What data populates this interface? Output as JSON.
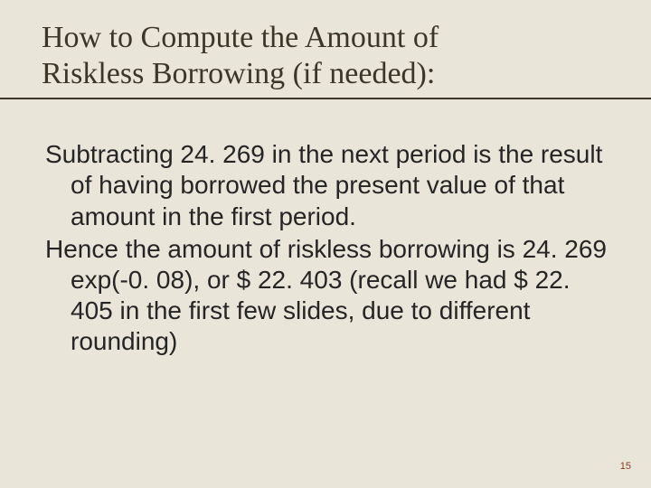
{
  "colors": {
    "background": "#eae5d9",
    "title_text": "#3d3628",
    "rule": "#3d3628",
    "body_text": "#252525",
    "page_num": "#8a3a1e"
  },
  "typography": {
    "title_font": "Times New Roman",
    "title_fontsize_pt": 26,
    "body_font": "Arial",
    "body_fontsize_pt": 21
  },
  "title": {
    "line1": "How to Compute the Amount of",
    "line2": "Riskless Borrowing (if needed):"
  },
  "body": {
    "para1": "Subtracting 24. 269 in the next period is the result of having borrowed the present value of that amount in the first period.",
    "para2": "Hence the amount of riskless borrowing is 24. 269 exp(-0. 08), or $ 22. 403 (recall we had $ 22. 405 in the first few slides, due to different rounding)"
  },
  "page_number": "15"
}
